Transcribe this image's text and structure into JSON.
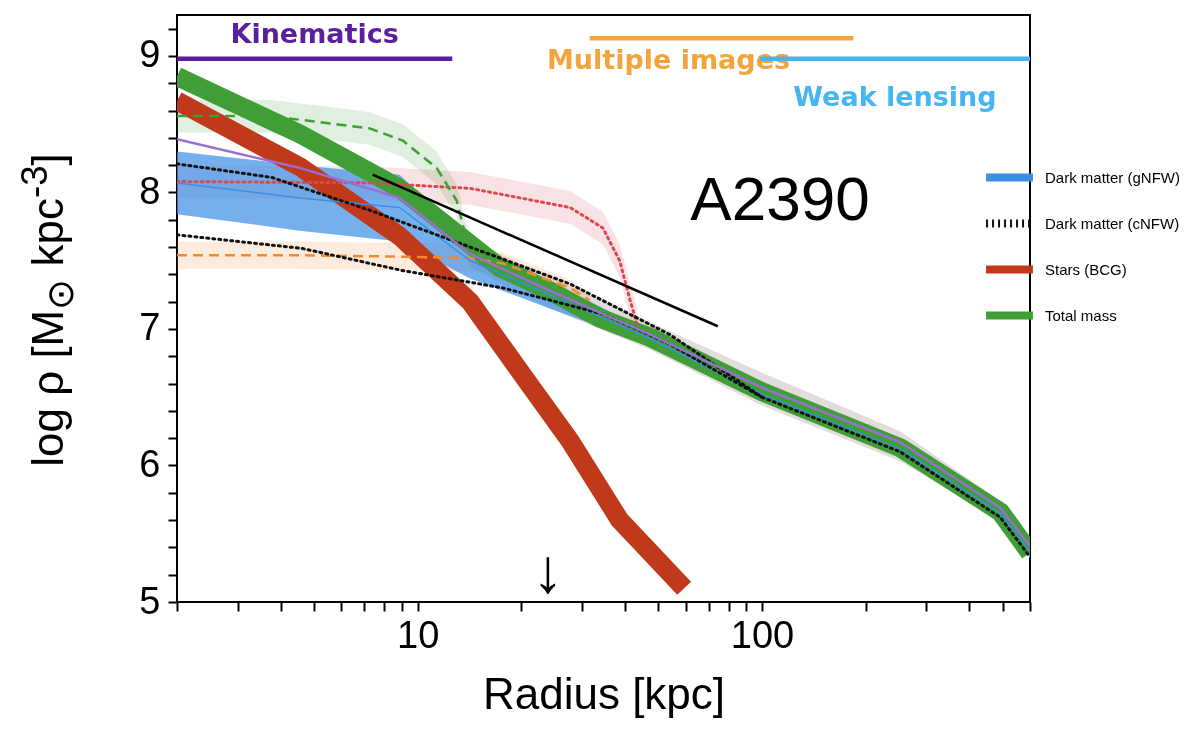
{
  "chart_data": {
    "type": "line",
    "xlabel": "Radius [kpc]",
    "ylabel": "log ρ [M$_{⊙}$ kpc$^{-3}$]",
    "log": "x",
    "xlim": [
      2,
      600
    ],
    "ylim": [
      5,
      9.3
    ],
    "xticks": [
      {
        "value": 2,
        "label": null
      },
      {
        "value": 3,
        "label": null
      },
      {
        "value": 4,
        "label": null
      },
      {
        "value": 5,
        "label": null
      },
      {
        "value": 6,
        "label": null
      },
      {
        "value": 7,
        "label": null
      },
      {
        "value": 8,
        "label": null
      },
      {
        "value": 9,
        "label": null
      },
      10,
      {
        "value": 20,
        "label": null
      },
      {
        "value": 30,
        "label": null
      },
      {
        "value": 40,
        "label": null
      },
      {
        "value": 50,
        "label": null
      },
      {
        "value": 60,
        "label": null
      },
      {
        "value": 70,
        "label": null
      },
      {
        "value": 80,
        "label": null
      },
      {
        "value": 90,
        "label": null
      },
      100,
      {
        "value": 200,
        "label": null
      },
      {
        "value": 300,
        "label": null
      },
      {
        "value": 400,
        "label": null
      },
      {
        "value": 500,
        "label": null
      },
      {
        "value": 600,
        "label": null
      }
    ],
    "yticks": [
      5,
      {
        "value": 5.2,
        "label": null
      },
      {
        "value": 5.4,
        "label": null
      },
      {
        "value": 5.6,
        "label": null
      },
      {
        "value": 5.8,
        "label": null
      },
      6,
      {
        "value": 6.2,
        "label": null
      },
      {
        "value": 6.4,
        "label": null
      },
      {
        "value": 6.6,
        "label": null
      },
      {
        "value": 6.8,
        "label": null
      },
      7,
      {
        "value": 7.2,
        "label": null
      },
      {
        "value": 7.4,
        "label": null
      },
      {
        "value": 7.6,
        "label": null
      },
      {
        "value": 7.8,
        "label": null
      },
      8,
      {
        "value": 8.2,
        "label": null
      },
      {
        "value": 8.4,
        "label": null
      },
      {
        "value": 8.6,
        "label": null
      },
      {
        "value": 8.8,
        "label": null
      },
      9,
      {
        "value": 9.2,
        "label": null
      }
    ],
    "legend": "right",
    "series": [
      {
        "color": "#d6cfcd",
        "x": [
          14.2,
          24.2,
          47.2,
          100,
          252,
          492,
          600
        ],
        "values": [
          null,
          null,
          null,
          null,
          null,
          null,
          null
        ],
        "lower": [
          7.45,
          7.15,
          6.85,
          6.44,
          6.03,
          5.6,
          5.32
        ],
        "upper": [
          7.65,
          7.38,
          7.05,
          6.68,
          6.25,
          5.74,
          5.42
        ]
      },
      {
        "color": "#f08a2c",
        "line_style": "dashed",
        "x": [
          2,
          4.54,
          8.86,
          14.2,
          17.7,
          27.7,
          31.6
        ],
        "values": [
          7.54,
          7.54,
          7.53,
          7.52,
          7.48,
          7.3,
          7.21
        ],
        "lower": [
          7.44,
          7.44,
          7.43,
          7.42,
          7.4,
          7.25,
          7.17
        ],
        "upper": [
          7.64,
          7.64,
          7.63,
          7.62,
          7.56,
          7.36,
          7.26
        ]
      },
      {
        "color": "#d94a4f",
        "line_style": "dotted",
        "x": [
          2,
          7.25,
          14.2,
          27.7,
          34.5,
          38.6,
          41.4,
          43.3
        ],
        "values": [
          8.08,
          8.07,
          8.03,
          7.89,
          7.74,
          7.5,
          7.21,
          7.04
        ],
        "lower": [
          7.96,
          7.95,
          7.91,
          7.77,
          7.62,
          7.38,
          7.09,
          6.92
        ],
        "upper": [
          8.2,
          8.19,
          8.15,
          8.01,
          7.86,
          7.62,
          7.33,
          7.16
        ]
      },
      {
        "color": "#3f9e35",
        "line_style": "dashed",
        "x": [
          2,
          3.71,
          7.25,
          9.05,
          11.35,
          12.98,
          14.2
        ],
        "values": [
          8.56,
          8.56,
          8.47,
          8.38,
          8.18,
          7.94,
          7.55
        ],
        "lower": [
          8.44,
          8.44,
          8.35,
          8.26,
          8.06,
          7.82,
          7.43
        ],
        "upper": [
          8.68,
          8.68,
          8.59,
          8.5,
          8.3,
          8.06,
          7.67
        ]
      },
      {
        "name": "Dark matter (gNFW)",
        "color": "#3a8ee6",
        "x": [
          2,
          4.54,
          8.86,
          14.2,
          24.2,
          47.2,
          100,
          252,
          492,
          600
        ],
        "values": [
          8.07,
          7.96,
          7.89,
          7.5,
          7.25,
          6.93,
          6.52,
          6.12,
          5.65,
          5.37
        ],
        "lower": [
          7.84,
          7.72,
          7.64,
          7.37,
          7.15,
          6.88,
          6.48,
          6.08,
          5.62,
          5.33
        ],
        "upper": [
          8.3,
          8.2,
          8.13,
          7.62,
          7.35,
          6.98,
          6.56,
          6.15,
          5.68,
          5.4
        ]
      },
      {
        "name": "Dark matter (cNFW)",
        "color": "#111111",
        "line_style": "dotted",
        "x": [
          2,
          3.77,
          7.25,
          14.2,
          27.7,
          53.9,
          100,
          252,
          492,
          600
        ],
        "values": [
          8.21,
          8.11,
          7.87,
          7.6,
          7.33,
          6.96,
          6.5,
          6.1,
          5.62,
          5.33
        ]
      },
      {
        "color": "#111111",
        "line_style": "dotted",
        "x": [
          2,
          4.62,
          8.95,
          17.7,
          34.5,
          53.9,
          100
        ],
        "values": [
          7.69,
          7.59,
          7.43,
          7.3,
          7.11,
          6.89,
          6.5
        ]
      },
      {
        "name": "Stars (BCG)",
        "color": "#c0391b",
        "line_style": "solid",
        "x": [
          2,
          4.54,
          8.86,
          14.2,
          19.8,
          27.7,
          38.6,
          59.4
        ],
        "values": [
          8.67,
          8.19,
          7.68,
          7.2,
          6.69,
          6.18,
          5.6,
          5.1
        ]
      },
      {
        "name": "Total mass",
        "color": "#3f9e35",
        "line_style": "solid",
        "x": [
          2,
          4.54,
          8.86,
          17.3,
          24.2,
          33.8,
          47.2,
          100,
          252,
          492,
          600
        ],
        "values": [
          8.85,
          8.43,
          8.03,
          7.45,
          7.28,
          7.08,
          6.94,
          6.54,
          6.13,
          5.66,
          5.36
        ]
      },
      {
        "color": "#9a6fd1",
        "x": [
          2,
          4.54,
          8.86,
          14.2,
          24.2,
          47.2,
          100,
          252,
          492,
          600
        ],
        "values": [
          8.39,
          8.18,
          7.96,
          7.55,
          7.28,
          6.96,
          6.57,
          6.17,
          5.69,
          5.41
        ]
      },
      {
        "color": "#000000",
        "x": [
          7.4,
          74.4
        ],
        "values": [
          8.13,
          7.02
        ]
      },
      {
        "name": "Kinematics",
        "color": "#5b1f9e",
        "x": [
          2,
          12.6
        ],
        "values": [
          8.98,
          8.98
        ]
      },
      {
        "name": "Multiple images",
        "color": "#f3a43a",
        "x": [
          31.6,
          184
        ],
        "values": [
          9.13,
          9.13
        ]
      },
      {
        "name": "Weak lensing",
        "color": "#45b6f0",
        "x": [
          98.6,
          600
        ],
        "values": [
          8.98,
          8.98
        ]
      }
    ],
    "annotations": [
      "A2390",
      "↓"
    ]
  }
}
